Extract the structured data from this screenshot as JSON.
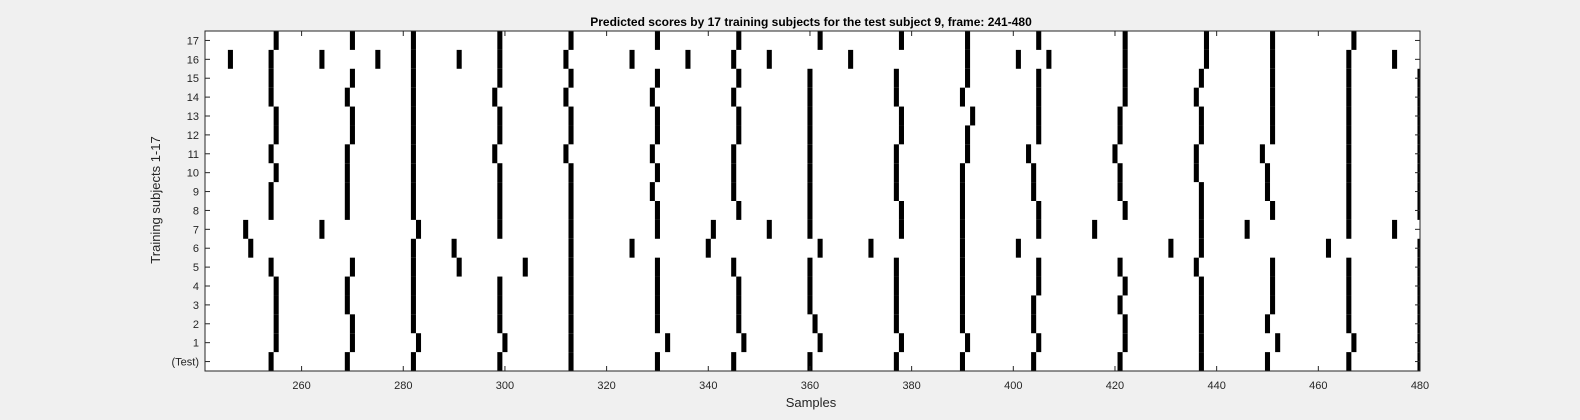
{
  "chart_data": {
    "type": "heatmap",
    "title": "Predicted scores by 17 training subjects for the test subject 9, frame: 241-480",
    "xlabel": "Samples",
    "ylabel": "Training subjects 1-17",
    "xlim": [
      241,
      480
    ],
    "xticks": [
      "260",
      "280",
      "300",
      "320",
      "340",
      "360",
      "380",
      "400",
      "420",
      "440",
      "460",
      "480"
    ],
    "xtick_values": [
      260,
      280,
      300,
      320,
      340,
      360,
      380,
      400,
      420,
      440,
      460,
      480
    ],
    "rows": [
      "17",
      "16",
      "15",
      "14",
      "13",
      "12",
      "11",
      "10",
      "9",
      "8",
      "7",
      "6",
      "5",
      "4",
      "3",
      "2",
      "1",
      "(Test)"
    ],
    "mark_color": "#000000",
    "background_color": "#ffffff",
    "grid": false,
    "marks": [
      {
        "row": "17",
        "samples": [
          255,
          270,
          282,
          299,
          313,
          330,
          346,
          362,
          378,
          391,
          405,
          422,
          438,
          451,
          467
        ]
      },
      {
        "row": "16",
        "samples": [
          246,
          254,
          264,
          275,
          282,
          291,
          299,
          312,
          325,
          336,
          345,
          352,
          368,
          391,
          401,
          407,
          422,
          438,
          451,
          466,
          475
        ]
      },
      {
        "row": "15",
        "samples": [
          254,
          270,
          282,
          299,
          313,
          330,
          346,
          360,
          377,
          391,
          405,
          422,
          437,
          451,
          466,
          480
        ]
      },
      {
        "row": "14",
        "samples": [
          254,
          269,
          282,
          298,
          312,
          329,
          345,
          360,
          377,
          390,
          405,
          422,
          436,
          451,
          466,
          480
        ]
      },
      {
        "row": "13",
        "samples": [
          255,
          270,
          282,
          299,
          313,
          330,
          346,
          360,
          378,
          392,
          405,
          421,
          437,
          451,
          466,
          480
        ]
      },
      {
        "row": "12",
        "samples": [
          255,
          270,
          282,
          299,
          313,
          330,
          346,
          360,
          378,
          391,
          405,
          421,
          437,
          451,
          466,
          480
        ]
      },
      {
        "row": "11",
        "samples": [
          254,
          269,
          282,
          298,
          312,
          329,
          345,
          360,
          377,
          391,
          403,
          420,
          436,
          449,
          466,
          480
        ]
      },
      {
        "row": "10",
        "samples": [
          255,
          269,
          282,
          299,
          313,
          330,
          345,
          360,
          377,
          390,
          404,
          421,
          436,
          450,
          466,
          480
        ]
      },
      {
        "row": "9",
        "samples": [
          254,
          269,
          282,
          299,
          313,
          329,
          345,
          360,
          377,
          390,
          404,
          421,
          437,
          450,
          466,
          480
        ]
      },
      {
        "row": "8",
        "samples": [
          254,
          269,
          282,
          299,
          313,
          330,
          346,
          360,
          378,
          390,
          405,
          422,
          437,
          451,
          466,
          480
        ]
      },
      {
        "row": "7",
        "samples": [
          249,
          264,
          283,
          299,
          313,
          330,
          341,
          352,
          360,
          378,
          390,
          405,
          416,
          437,
          446,
          466,
          475
        ]
      },
      {
        "row": "6",
        "samples": [
          250,
          282,
          290,
          313,
          325,
          340,
          362,
          372,
          390,
          401,
          431,
          437,
          462,
          480
        ]
      },
      {
        "row": "5",
        "samples": [
          254,
          270,
          282,
          291,
          304,
          313,
          330,
          345,
          360,
          377,
          390,
          405,
          421,
          436,
          451,
          466,
          480
        ]
      },
      {
        "row": "4",
        "samples": [
          255,
          269,
          282,
          299,
          313,
          330,
          346,
          360,
          377,
          390,
          405,
          422,
          437,
          451,
          466,
          480
        ]
      },
      {
        "row": "3",
        "samples": [
          255,
          269,
          282,
          299,
          313,
          330,
          346,
          360,
          377,
          390,
          404,
          421,
          437,
          451,
          466,
          480
        ]
      },
      {
        "row": "2",
        "samples": [
          255,
          270,
          282,
          299,
          313,
          330,
          346,
          361,
          377,
          390,
          404,
          422,
          437,
          450,
          466,
          480
        ]
      },
      {
        "row": "1",
        "samples": [
          255,
          270,
          283,
          300,
          313,
          332,
          347,
          362,
          378,
          391,
          405,
          422,
          437,
          452,
          467,
          480
        ]
      },
      {
        "row": "(Test)",
        "samples": [
          254,
          269,
          282,
          299,
          313,
          330,
          345,
          360,
          377,
          390,
          404,
          421,
          437,
          450,
          466,
          480
        ]
      }
    ]
  }
}
